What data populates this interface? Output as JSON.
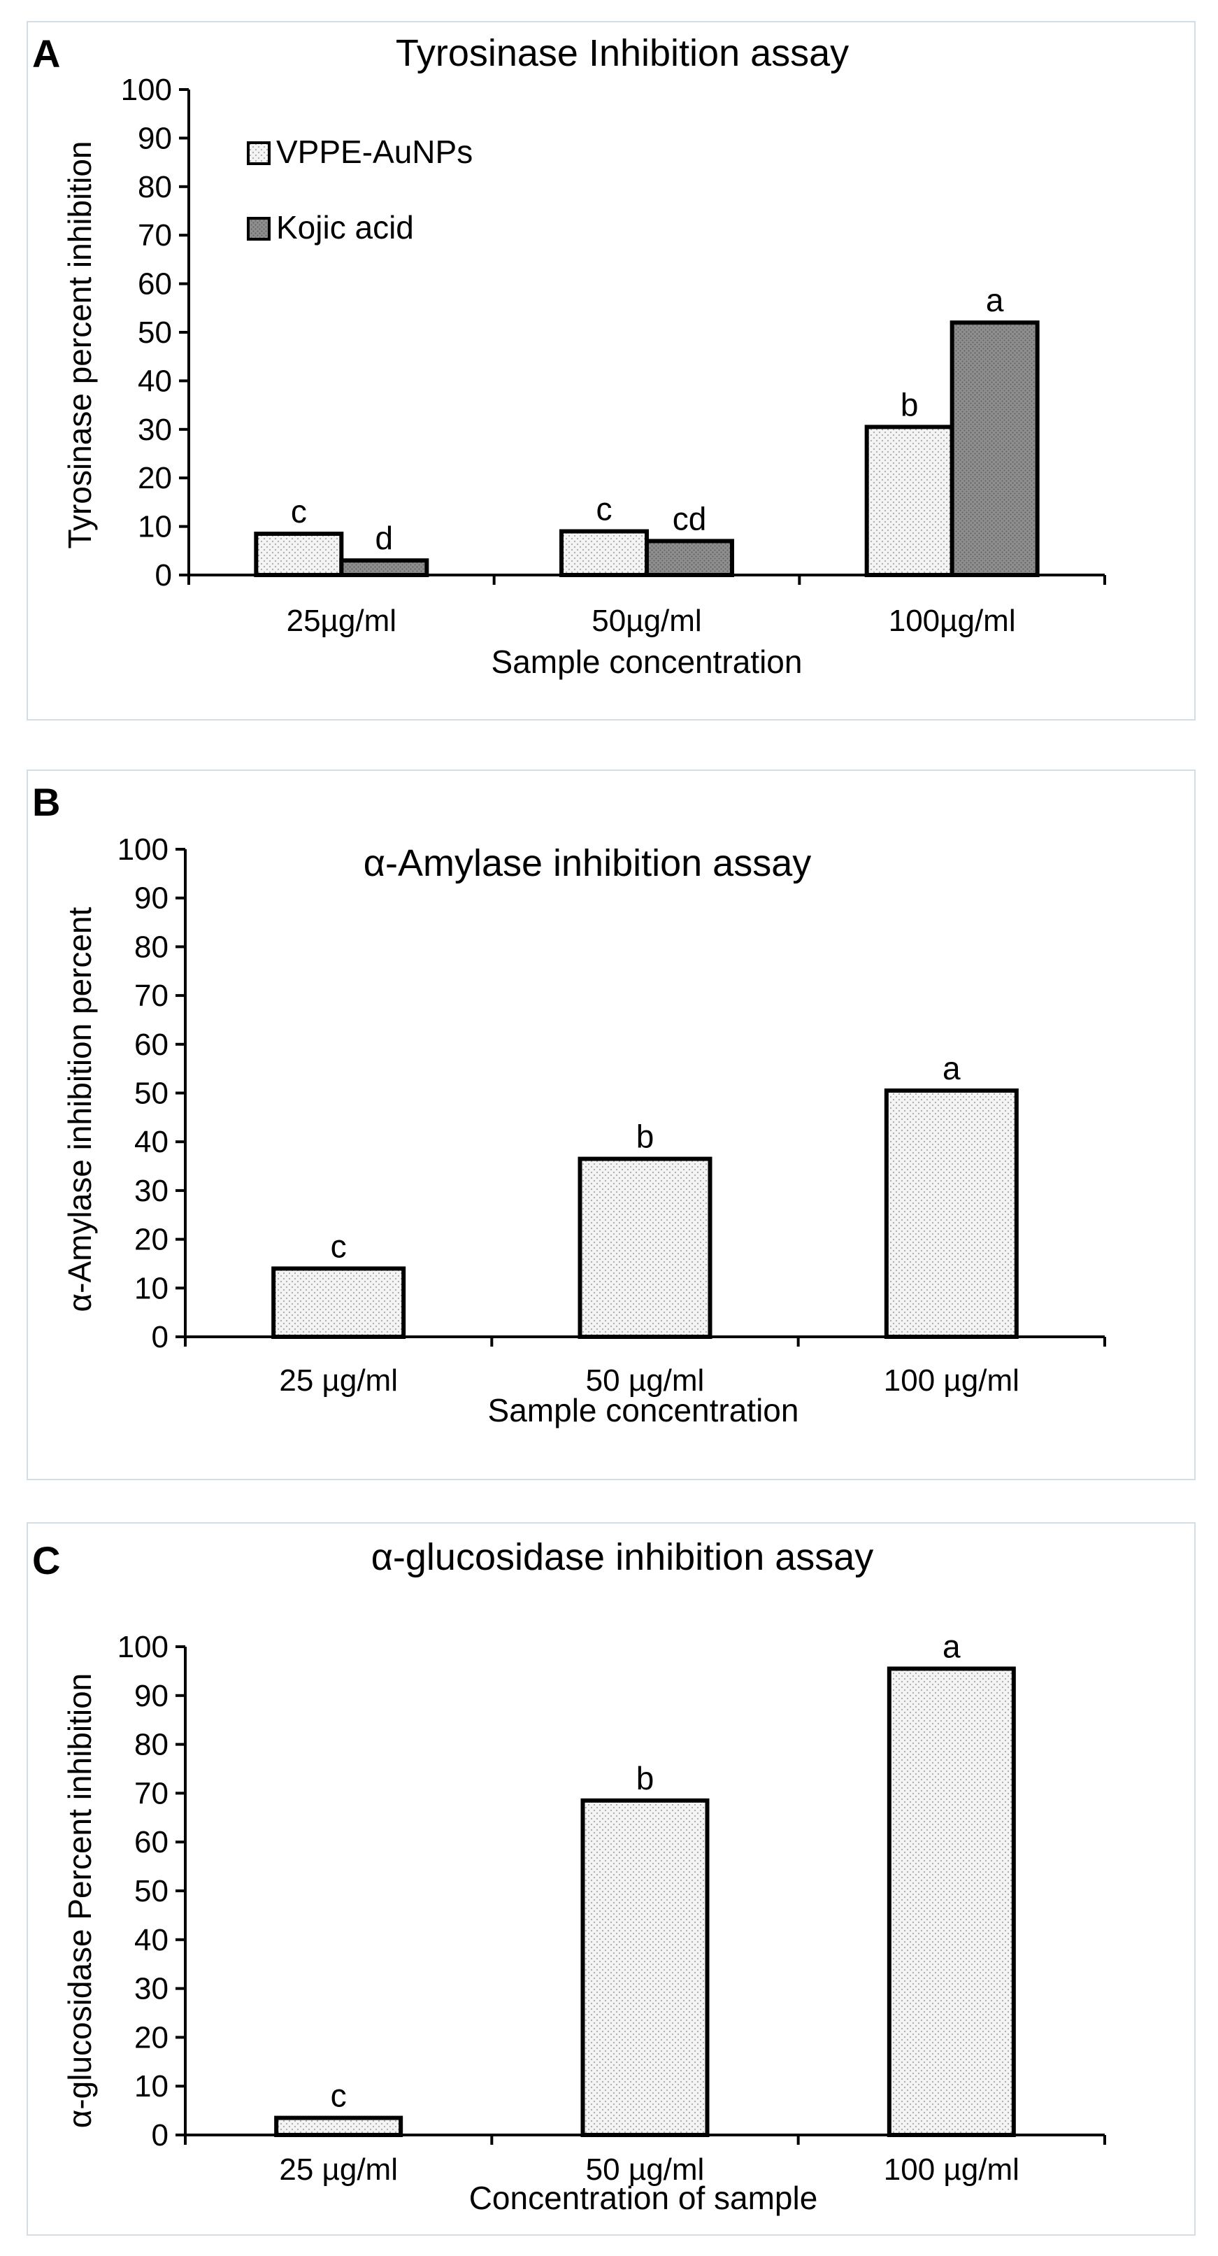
{
  "chart_data": [
    {
      "panel": "A",
      "type": "bar",
      "title": "Tyrosinase Inhibition assay",
      "xlabel": "Sample concentration",
      "ylabel": "Tyrosinase percent inhibition",
      "ylim": [
        0,
        100
      ],
      "yticks": [
        0,
        10,
        20,
        30,
        40,
        50,
        60,
        70,
        80,
        90,
        100
      ],
      "categories": [
        "25µg/ml",
        "50µg/ml",
        "100µg/ml"
      ],
      "legend_position": "top-left",
      "series": [
        {
          "name": "VPPE-AuNPs",
          "values": [
            8.5,
            9,
            30.5
          ],
          "labels": [
            "c",
            "c",
            "b"
          ],
          "fill": "light-dotted"
        },
        {
          "name": "Kojic acid",
          "values": [
            3,
            7,
            52
          ],
          "labels": [
            "d",
            "cd",
            "a"
          ],
          "fill": "dark-dotted"
        }
      ]
    },
    {
      "panel": "B",
      "type": "bar",
      "title": "α-Amylase inhibition assay",
      "xlabel": "Sample concentration",
      "ylabel": "α-Amylase inhibition percent",
      "ylim": [
        0,
        100
      ],
      "yticks": [
        0,
        10,
        20,
        30,
        40,
        50,
        60,
        70,
        80,
        90,
        100
      ],
      "categories": [
        "25 µg/ml",
        "50 µg/ml",
        "100 µg/ml"
      ],
      "series": [
        {
          "name": "",
          "values": [
            14,
            36.5,
            50.5
          ],
          "labels": [
            "c",
            "b",
            "a"
          ],
          "fill": "light-dotted"
        }
      ]
    },
    {
      "panel": "C",
      "type": "bar",
      "title": "α-glucosidase inhibition assay",
      "xlabel": "Concentration of sample",
      "ylabel": "α-glucosidase Percent inhibition",
      "ylim": [
        0,
        100
      ],
      "yticks": [
        0,
        10,
        20,
        30,
        40,
        50,
        60,
        70,
        80,
        90,
        100
      ],
      "categories": [
        "25 µg/ml",
        "50 µg/ml",
        "100 µg/ml"
      ],
      "series": [
        {
          "name": "",
          "values": [
            3.5,
            68.5,
            95.5
          ],
          "labels": [
            "c",
            "b",
            "a"
          ],
          "fill": "light-dotted"
        }
      ]
    }
  ],
  "colors": {
    "light_fill": "#f1f1f1",
    "dark_fill": "#8c8c8c",
    "border": "#d3dde3",
    "axis": "#000000"
  }
}
